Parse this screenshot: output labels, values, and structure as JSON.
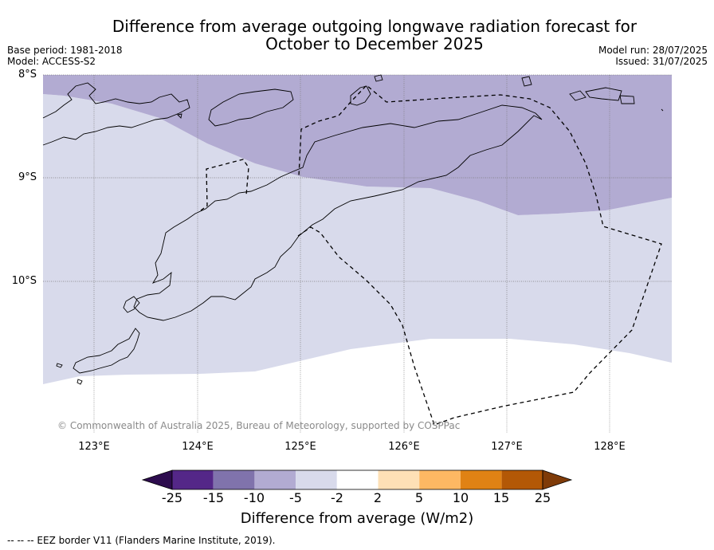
{
  "title_line1": "Difference from average outgoing longwave radiation forecast for",
  "title_line2": "October to December 2025",
  "meta_left": {
    "base_period": "Base period: 1981-2018",
    "model": "Model: ACCESS-S2"
  },
  "meta_right": {
    "model_run": "Model run: 28/07/2025",
    "issued": "Issued: 31/07/2025"
  },
  "lat_labels": [
    "8°S",
    "9°S",
    "10°S"
  ],
  "lon_labels": [
    "123°E",
    "124°E",
    "125°E",
    "126°E",
    "127°E",
    "128°E"
  ],
  "copyright": "© Commonwealth of Australia 2025, Bureau of Meteorology, supported by COSPPac",
  "colorbar": {
    "ticks": [
      "-25",
      "-15",
      "-10",
      "-5",
      "-2",
      "2",
      "5",
      "10",
      "15",
      "25"
    ],
    "colors": [
      "#2d0c4e",
      "#542788",
      "#8073ac",
      "#b2abd2",
      "#d8daeb",
      "#ffffff",
      "#fee0b6",
      "#fdb863",
      "#e08214",
      "#b35806",
      "#7f3b08"
    ],
    "label": "Difference from average (W/m2)"
  },
  "footnote": "--  --  -- EEZ border V11 (Flanders Marine Institute, 2019).",
  "legend_colors": {
    "minus10_to_minus5": "#b2abd2",
    "minus5_to_minus2": "#d8daeb",
    "neutral": "#ffffff",
    "coastline": "#000000"
  }
}
